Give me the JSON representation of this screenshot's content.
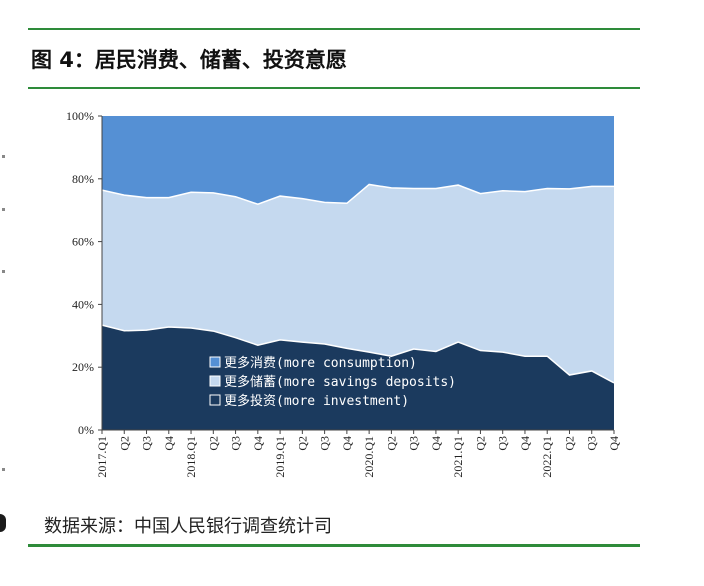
{
  "title": "图 4：居民消费、储蓄、投资意愿",
  "source": "数据来源：中国人民银行调查统计司",
  "chart_data": {
    "type": "area",
    "stacked": true,
    "categories": [
      "2017.Q1",
      "Q2",
      "Q3",
      "Q4",
      "2018.Q1",
      "Q2",
      "Q3",
      "Q4",
      "2019.Q1",
      "Q2",
      "Q3",
      "Q4",
      "2020.Q1",
      "Q2",
      "Q3",
      "Q4",
      "2021.Q1",
      "Q2",
      "Q3",
      "Q4",
      "2022.Q1",
      "Q2",
      "Q3",
      "Q4"
    ],
    "yticks": [
      "0%",
      "20%",
      "40%",
      "60%",
      "80%",
      "100%"
    ],
    "ylim": [
      0,
      100
    ],
    "series": [
      {
        "name": "更多投资(more investment)",
        "color": "#1b3a5e",
        "values": [
          33.4,
          31.6,
          31.8,
          32.8,
          32.5,
          31.5,
          29.4,
          27.0,
          28.7,
          28.0,
          27.4,
          26.0,
          24.8,
          23.5,
          25.8,
          25.0,
          28.0,
          25.3,
          24.8,
          23.5,
          23.5,
          17.5,
          18.8,
          15.0
        ]
      },
      {
        "name": "更多储蓄(more savings deposits)",
        "color": "#c5d9ef",
        "values": [
          43.0,
          43.2,
          42.2,
          41.2,
          43.2,
          44.0,
          44.9,
          44.9,
          45.8,
          45.7,
          45.1,
          46.2,
          53.4,
          53.6,
          51.1,
          51.9,
          50.0,
          50.0,
          51.4,
          52.4,
          53.4,
          59.3,
          58.8,
          62.6
        ]
      },
      {
        "name": "更多消费(more consumption)",
        "color": "#5590d4",
        "values": [
          23.6,
          25.2,
          26.0,
          26.0,
          24.3,
          24.5,
          25.7,
          28.1,
          25.5,
          26.3,
          27.5,
          27.8,
          21.8,
          22.9,
          23.1,
          23.1,
          22.0,
          24.7,
          23.8,
          24.1,
          23.1,
          23.2,
          22.4,
          22.4
        ]
      }
    ]
  }
}
